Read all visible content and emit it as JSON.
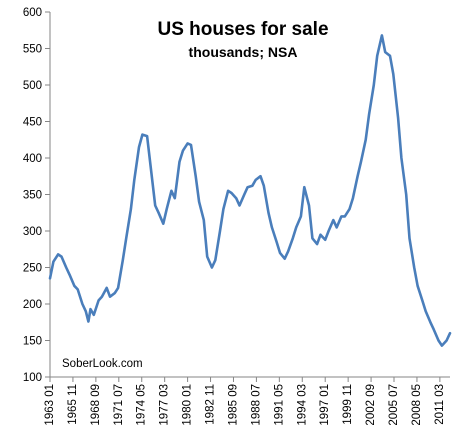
{
  "chart_data": {
    "type": "line",
    "title": "US houses for sale",
    "subtitle": "thousands; NSA",
    "watermark": "SoberLook.com",
    "xlabel": "",
    "ylabel": "",
    "ylim": [
      100,
      600
    ],
    "yticks": [
      100,
      150,
      200,
      250,
      300,
      350,
      400,
      450,
      500,
      550,
      600
    ],
    "xlim": [
      "1963-01",
      "2012-06"
    ],
    "xticks": [
      "1963 01",
      "1965 11",
      "1968 09",
      "1971 07",
      "1974 05",
      "1977 03",
      "1980 01",
      "1982 11",
      "1985 09",
      "1988 07",
      "1991 05",
      "1994 03",
      "1997 01",
      "1999 11",
      "2002 09",
      "2005 07",
      "2008 05",
      "2011 03"
    ],
    "grid": false,
    "legend": "none",
    "color": "#4a7ebb",
    "series": [
      {
        "x": [
          "1963-01",
          "1963-06",
          "1964-01",
          "1964-06",
          "1965-01",
          "1965-06",
          "1966-01",
          "1966-06",
          "1967-01",
          "1967-06",
          "1967-10",
          "1968-01",
          "1968-06",
          "1969-01",
          "1969-06",
          "1970-01",
          "1970-06",
          "1971-01",
          "1971-06",
          "1972-01",
          "1972-06",
          "1973-01",
          "1973-06",
          "1974-01",
          "1974-06",
          "1975-01",
          "1975-06",
          "1976-01",
          "1976-06",
          "1977-01",
          "1977-06",
          "1978-01",
          "1978-06",
          "1979-01",
          "1979-06",
          "1980-01",
          "1980-06",
          "1981-01",
          "1981-06",
          "1982-01",
          "1982-06",
          "1983-01",
          "1983-06",
          "1984-01",
          "1984-06",
          "1985-01",
          "1985-06",
          "1986-01",
          "1986-06",
          "1987-01",
          "1987-06",
          "1988-01",
          "1988-06",
          "1989-01",
          "1989-06",
          "1990-01",
          "1990-06",
          "1991-01",
          "1991-06",
          "1992-01",
          "1992-06",
          "1993-01",
          "1993-06",
          "1994-01",
          "1994-06",
          "1995-01",
          "1995-06",
          "1996-01",
          "1996-06",
          "1997-01",
          "1997-06",
          "1998-01",
          "1998-06",
          "1999-01",
          "1999-06",
          "2000-01",
          "2000-06",
          "2001-01",
          "2001-06",
          "2002-01",
          "2002-06",
          "2003-01",
          "2003-06",
          "2004-01",
          "2004-06",
          "2005-01",
          "2005-06",
          "2006-01",
          "2006-06",
          "2007-01",
          "2007-06",
          "2008-01",
          "2008-06",
          "2009-01",
          "2009-06",
          "2010-01",
          "2010-06",
          "2011-01",
          "2011-06",
          "2012-01",
          "2012-06"
        ],
        "values": [
          235,
          258,
          268,
          265,
          250,
          240,
          225,
          220,
          200,
          190,
          176,
          193,
          185,
          205,
          210,
          222,
          210,
          215,
          222,
          260,
          290,
          330,
          370,
          415,
          432,
          430,
          390,
          335,
          325,
          310,
          330,
          355,
          345,
          395,
          410,
          420,
          418,
          375,
          340,
          315,
          265,
          250,
          260,
          300,
          330,
          355,
          352,
          345,
          335,
          350,
          360,
          362,
          370,
          375,
          362,
          325,
          305,
          285,
          270,
          262,
          272,
          290,
          305,
          320,
          360,
          335,
          290,
          282,
          295,
          288,
          300,
          315,
          305,
          320,
          320,
          330,
          345,
          375,
          395,
          425,
          460,
          500,
          540,
          568,
          545,
          540,
          515,
          455,
          400,
          350,
          290,
          250,
          225,
          205,
          190,
          175,
          165,
          150,
          143,
          150,
          160
        ]
      }
    ]
  }
}
